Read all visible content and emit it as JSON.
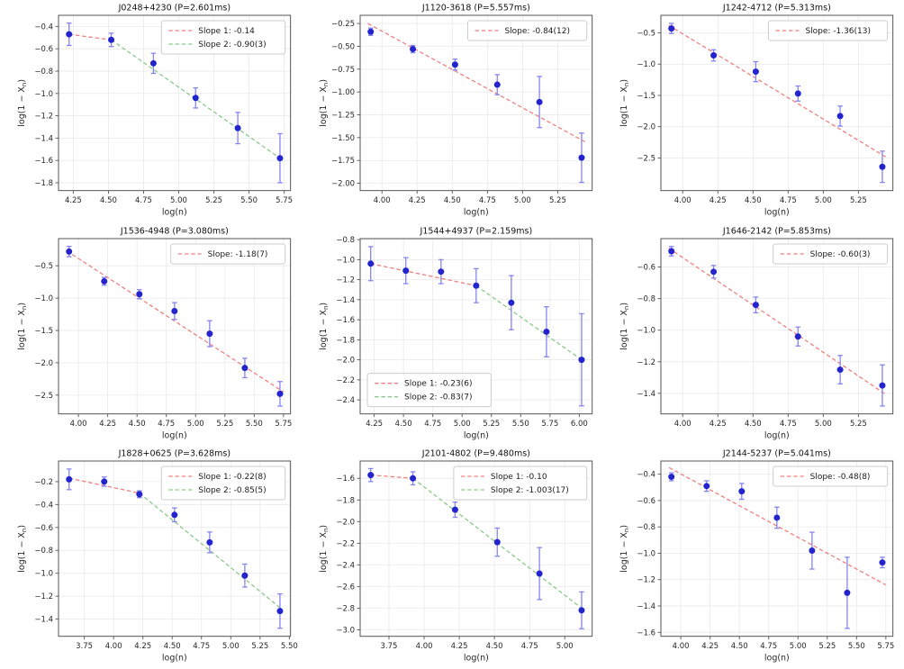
{
  "figure": {
    "colors": {
      "background": "#ffffff",
      "grid": "#e8e8e8",
      "spine": "#555555",
      "text": "#262626",
      "title": "#111111",
      "point": "#2424cf",
      "error": "#8585ee",
      "slope1": "#f08080",
      "slope2": "#8cc98c",
      "legend_border": "#cccccc"
    }
  },
  "chart_data": [
    {
      "type": "scatter",
      "title": "J0248+4230 (P=2.601ms)",
      "xlabel": "log(n)",
      "ylabel": "log(1 − X_n)",
      "xlim": [
        4.145,
        5.795
      ],
      "ylim": [
        -1.87,
        -0.3
      ],
      "xticks": [
        4.25,
        4.5,
        4.75,
        5.0,
        5.25,
        5.5,
        5.75
      ],
      "yticks": [
        -0.4,
        -0.6,
        -0.8,
        -1.0,
        -1.2,
        -1.4,
        -1.6,
        -1.8
      ],
      "ytick_decimals": 1,
      "x": [
        4.22,
        4.52,
        4.82,
        5.12,
        5.42,
        5.72
      ],
      "y": [
        -0.47,
        -0.52,
        -0.73,
        -1.04,
        -1.31,
        -1.58
      ],
      "yerr": [
        0.1,
        0.06,
        0.09,
        0.09,
        0.14,
        0.22
      ],
      "fits": [
        {
          "label": "Slope 1: -0.14",
          "color_key": "slope1",
          "x1": 4.22,
          "y1": -0.47,
          "x2": 4.52,
          "y2": -0.52
        },
        {
          "label": "Slope 2: -0.90(3)",
          "color_key": "slope2",
          "x1": 4.52,
          "y1": -0.52,
          "x2": 5.72,
          "y2": -1.58
        }
      ],
      "legend": "upper_right"
    },
    {
      "type": "scatter",
      "title": "J1120-3618 (P=5.557ms)",
      "xlabel": "log(n)",
      "ylabel": "log(1 − X_n)",
      "xlim": [
        3.845,
        5.495
      ],
      "ylim": [
        -2.08,
        -0.16
      ],
      "xticks": [
        4.0,
        4.25,
        4.5,
        4.75,
        5.0,
        5.25
      ],
      "yticks": [
        -0.25,
        -0.5,
        -0.75,
        -1.0,
        -1.25,
        -1.5,
        -1.75,
        -2.0
      ],
      "ytick_decimals": 2,
      "x": [
        3.92,
        4.22,
        4.52,
        4.82,
        5.12,
        5.42
      ],
      "y": [
        -0.34,
        -0.53,
        -0.7,
        -0.92,
        -1.11,
        -1.72
      ],
      "yerr": [
        0.04,
        0.04,
        0.06,
        0.11,
        0.28,
        0.27
      ],
      "fits": [
        {
          "label": "Slope: -0.84(12)",
          "color_key": "slope1",
          "x1": 3.9,
          "y1": -0.25,
          "x2": 5.45,
          "y2": -1.55
        }
      ],
      "legend": "upper_right"
    },
    {
      "type": "scatter",
      "title": "J1242-4712 (P=5.313ms)",
      "xlabel": "log(n)",
      "ylabel": "log(1 − X_n)",
      "xlim": [
        3.845,
        5.495
      ],
      "ylim": [
        -3.02,
        -0.22
      ],
      "xticks": [
        4.0,
        4.25,
        4.5,
        4.75,
        5.0,
        5.25
      ],
      "yticks": [
        -0.5,
        -1.0,
        -1.5,
        -2.0,
        -2.5
      ],
      "ytick_decimals": 1,
      "x": [
        3.92,
        4.22,
        4.52,
        4.82,
        5.12,
        5.42
      ],
      "y": [
        -0.43,
        -0.86,
        -1.12,
        -1.47,
        -1.83,
        -2.64
      ],
      "yerr": [
        0.08,
        0.09,
        0.16,
        0.12,
        0.16,
        0.25
      ],
      "fits": [
        {
          "label": "Slope: -1.36(13)",
          "color_key": "slope1",
          "x1": 3.9,
          "y1": -0.38,
          "x2": 5.45,
          "y2": -2.49
        }
      ],
      "legend": "upper_right"
    },
    {
      "type": "scatter",
      "title": "J1536-4948 (P=3.080ms)",
      "xlabel": "log(n)",
      "ylabel": "log(1 − X_n)",
      "xlim": [
        3.83,
        5.81
      ],
      "ylim": [
        -2.79,
        -0.08
      ],
      "xticks": [
        4.0,
        4.25,
        4.5,
        4.75,
        5.0,
        5.25,
        5.5,
        5.75
      ],
      "yticks": [
        -0.5,
        -1.0,
        -1.5,
        -2.0,
        -2.5
      ],
      "ytick_decimals": 1,
      "x": [
        3.92,
        4.22,
        4.52,
        4.82,
        5.12,
        5.42,
        5.72
      ],
      "y": [
        -0.28,
        -0.74,
        -0.94,
        -1.2,
        -1.55,
        -2.08,
        -2.48
      ],
      "yerr": [
        0.08,
        0.06,
        0.07,
        0.13,
        0.2,
        0.15,
        0.19
      ],
      "fits": [
        {
          "label": "Slope: -1.18(7)",
          "color_key": "slope1",
          "x1": 3.9,
          "y1": -0.27,
          "x2": 5.75,
          "y2": -2.45
        }
      ],
      "legend": "upper_right"
    },
    {
      "type": "scatter",
      "title": "J1544+4937 (P=2.159ms)",
      "xlabel": "log(n)",
      "ylabel": "log(1 − X_n)",
      "xlim": [
        4.13,
        6.11
      ],
      "ylim": [
        -2.54,
        -0.79
      ],
      "xticks": [
        4.25,
        4.5,
        4.75,
        5.0,
        5.25,
        5.5,
        5.75,
        6.0
      ],
      "yticks": [
        -0.8,
        -1.0,
        -1.2,
        -1.4,
        -1.6,
        -1.8,
        -2.0,
        -2.2,
        -2.4
      ],
      "ytick_decimals": 1,
      "x": [
        4.22,
        4.52,
        4.82,
        5.12,
        5.42,
        5.72,
        6.02
      ],
      "y": [
        -1.04,
        -1.11,
        -1.12,
        -1.26,
        -1.43,
        -1.72,
        -2.0
      ],
      "yerr": [
        0.17,
        0.13,
        0.12,
        0.17,
        0.27,
        0.25,
        0.46
      ],
      "fits": [
        {
          "label": "Slope 1: -0.23(6)",
          "color_key": "slope1",
          "x1": 4.22,
          "y1": -1.04,
          "x2": 5.12,
          "y2": -1.26
        },
        {
          "label": "Slope 2: -0.83(7)",
          "color_key": "slope2",
          "x1": 5.12,
          "y1": -1.26,
          "x2": 6.02,
          "y2": -2.0
        }
      ],
      "legend": "lower_left"
    },
    {
      "type": "scatter",
      "title": "J1646-2142 (P=5.853ms)",
      "xlabel": "log(n)",
      "ylabel": "log(1 − X_n)",
      "xlim": [
        3.845,
        5.495
      ],
      "ylim": [
        -1.53,
        -0.42
      ],
      "xticks": [
        4.0,
        4.25,
        4.5,
        4.75,
        5.0,
        5.25
      ],
      "yticks": [
        -0.6,
        -0.8,
        -1.0,
        -1.2,
        -1.4
      ],
      "ytick_decimals": 1,
      "x": [
        3.92,
        4.22,
        4.52,
        4.82,
        5.12,
        5.42
      ],
      "y": [
        -0.5,
        -0.63,
        -0.84,
        -1.04,
        -1.25,
        -1.35
      ],
      "yerr": [
        0.03,
        0.04,
        0.05,
        0.06,
        0.09,
        0.13
      ],
      "fits": [
        {
          "label": "Slope: -0.60(3)",
          "color_key": "slope1",
          "x1": 3.9,
          "y1": -0.48,
          "x2": 5.45,
          "y2": -1.41
        }
      ],
      "legend": "upper_right"
    },
    {
      "type": "scatter",
      "title": "J1828+0625 (P=3.628ms)",
      "xlabel": "log(n)",
      "ylabel": "log(1 − X_n)",
      "xlim": [
        3.53,
        5.51
      ],
      "ylim": [
        -1.55,
        -0.02
      ],
      "xticks": [
        3.75,
        4.0,
        4.25,
        4.5,
        4.75,
        5.0,
        5.25,
        5.5
      ],
      "yticks": [
        -0.2,
        -0.4,
        -0.6,
        -0.8,
        -1.0,
        -1.2,
        -1.4
      ],
      "ytick_decimals": 1,
      "x": [
        3.62,
        3.92,
        4.22,
        4.52,
        4.82,
        5.12,
        5.42
      ],
      "y": [
        -0.18,
        -0.2,
        -0.31,
        -0.49,
        -0.73,
        -1.02,
        -1.33
      ],
      "yerr": [
        0.09,
        0.04,
        0.03,
        0.06,
        0.09,
        0.1,
        0.15
      ],
      "fits": [
        {
          "label": "Slope 1: -0.22(8)",
          "color_key": "slope1",
          "x1": 3.62,
          "y1": -0.17,
          "x2": 4.22,
          "y2": -0.3
        },
        {
          "label": "Slope 2: -0.85(5)",
          "color_key": "slope2",
          "x1": 4.22,
          "y1": -0.3,
          "x2": 5.42,
          "y2": -1.3
        }
      ],
      "legend": "upper_right"
    },
    {
      "type": "scatter",
      "title": "J2101-4802 (P=9.480ms)",
      "xlabel": "log(n)",
      "ylabel": "log(1 − X_n)",
      "xlim": [
        3.545,
        5.195
      ],
      "ylim": [
        -3.06,
        -1.44
      ],
      "xticks": [
        3.75,
        4.0,
        4.25,
        4.5,
        4.75,
        5.0
      ],
      "yticks": [
        -1.6,
        -1.8,
        -2.0,
        -2.2,
        -2.4,
        -2.6,
        -2.8,
        -3.0
      ],
      "ytick_decimals": 1,
      "x": [
        3.62,
        3.92,
        4.22,
        4.52,
        4.82,
        5.12
      ],
      "y": [
        -1.57,
        -1.6,
        -1.89,
        -2.19,
        -2.48,
        -2.82
      ],
      "yerr": [
        0.06,
        0.06,
        0.07,
        0.13,
        0.24,
        0.17
      ],
      "fits": [
        {
          "label": "Slope 1: -0.10",
          "color_key": "slope1",
          "x1": 3.62,
          "y1": -1.57,
          "x2": 3.92,
          "y2": -1.6
        },
        {
          "label": "Slope 2: -1.003(17)",
          "color_key": "slope2",
          "x1": 3.92,
          "y1": -1.6,
          "x2": 5.12,
          "y2": -2.8
        }
      ],
      "legend": "upper_right"
    },
    {
      "type": "scatter",
      "title": "J2144-5237 (P=5.041ms)",
      "xlabel": "log(n)",
      "ylabel": "log(1 − X_n)",
      "xlim": [
        3.83,
        5.81
      ],
      "ylim": [
        -1.63,
        -0.3
      ],
      "xticks": [
        4.0,
        4.25,
        4.5,
        4.75,
        5.0,
        5.25,
        5.5,
        5.75
      ],
      "yticks": [
        -0.4,
        -0.6,
        -0.8,
        -1.0,
        -1.2,
        -1.4,
        -1.6
      ],
      "ytick_decimals": 1,
      "x": [
        3.92,
        4.22,
        4.52,
        4.82,
        5.12,
        5.42,
        5.72
      ],
      "y": [
        -0.42,
        -0.49,
        -0.53,
        -0.73,
        -0.98,
        -1.3,
        -1.07
      ],
      "yerr": [
        0.03,
        0.04,
        0.06,
        0.08,
        0.14,
        0.27,
        0.04
      ],
      "fits": [
        {
          "label": "Slope: -0.48(8)",
          "color_key": "slope1",
          "x1": 3.9,
          "y1": -0.35,
          "x2": 5.75,
          "y2": -1.24
        }
      ],
      "legend": "upper_right"
    }
  ]
}
